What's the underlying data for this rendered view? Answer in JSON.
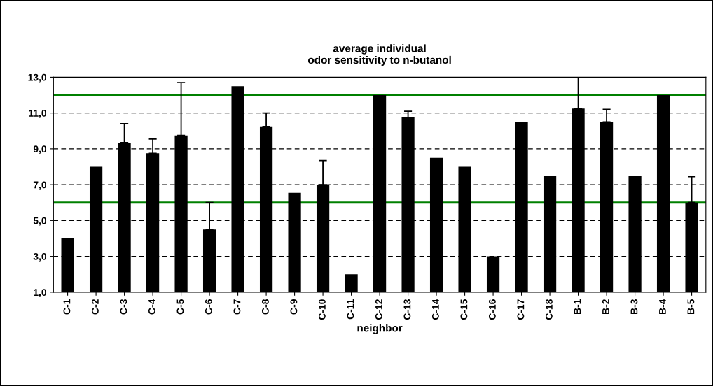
{
  "chart_data": {
    "type": "bar",
    "title": "average individual\nodor sensitivity to n-butanol",
    "xlabel": "neighbor",
    "categories": [
      "C-1",
      "C-2",
      "C-3",
      "C-4",
      "C-5",
      "C-6",
      "C-7",
      "C-8",
      "C-9",
      "C-10",
      "C-11",
      "C-12",
      "C-13",
      "C-14",
      "C-15",
      "C-16",
      "C-17",
      "C-18",
      "B-1",
      "B-2",
      "B-3",
      "B-4",
      "B-5"
    ],
    "values": [
      4.0,
      8.0,
      9.35,
      8.75,
      9.75,
      4.5,
      12.5,
      10.25,
      6.55,
      7.0,
      2.0,
      12.0,
      10.75,
      8.5,
      8.0,
      3.0,
      10.5,
      7.5,
      11.25,
      10.5,
      7.5,
      12.0,
      6.0
    ],
    "errors": [
      null,
      null,
      [
        9.35,
        10.4
      ],
      [
        8.75,
        9.55
      ],
      [
        9.75,
        12.7
      ],
      [
        4.5,
        6.0
      ],
      null,
      [
        10.25,
        11.0
      ],
      null,
      [
        7.0,
        8.35
      ],
      null,
      null,
      [
        10.75,
        11.1
      ],
      null,
      null,
      null,
      null,
      null,
      [
        11.25,
        13.0
      ],
      [
        10.5,
        11.2
      ],
      null,
      null,
      [
        6.0,
        7.45
      ]
    ],
    "color": "#000000",
    "ylim": [
      1,
      13
    ],
    "yticks": [
      {
        "value": 1,
        "label": "1,0"
      },
      {
        "value": 3,
        "label": "3,0"
      },
      {
        "value": 5,
        "label": "5,0"
      },
      {
        "value": 7,
        "label": "7,0"
      },
      {
        "value": 9,
        "label": "9,0"
      },
      {
        "value": 11,
        "label": "11,0"
      },
      {
        "value": 13,
        "label": "13,0"
      }
    ],
    "grid": "y",
    "ref_lines": [
      {
        "axis": "y",
        "value": 12,
        "color": "#008000"
      },
      {
        "axis": "y",
        "value": 6,
        "color": "#008000"
      }
    ]
  }
}
